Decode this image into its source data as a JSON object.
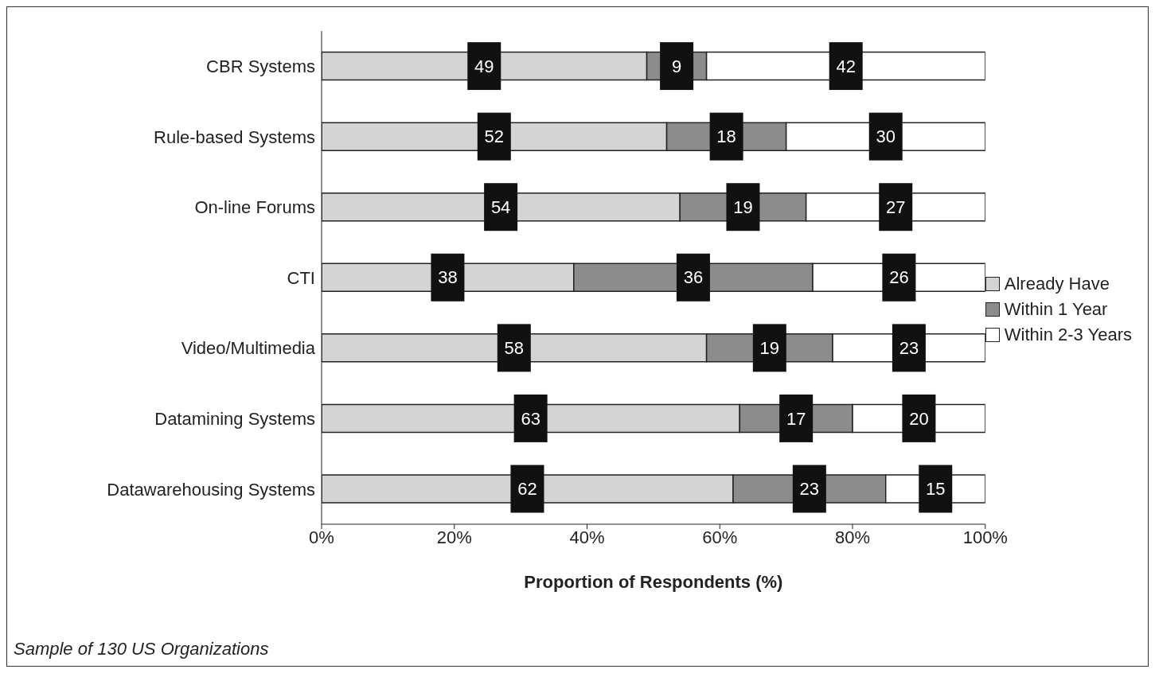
{
  "chart_data": {
    "type": "bar",
    "orientation": "horizontal",
    "stacked": true,
    "xlabel": "Proportion of Respondents (%)",
    "categories": [
      "CBR Systems",
      "Rule-based Systems",
      "On-line Forums",
      "CTI",
      "Video/Multimedia",
      "Datamining Systems",
      "Datawarehousing Systems"
    ],
    "series": [
      {
        "name": "Already Have",
        "color": "#d4d4d4",
        "values": [
          49,
          52,
          54,
          38,
          58,
          63,
          62
        ]
      },
      {
        "name": "Within 1 Year",
        "color": "#8c8c8c",
        "values": [
          9,
          18,
          19,
          36,
          19,
          17,
          23
        ]
      },
      {
        "name": "Within 2-3 Years",
        "color": "#ffffff",
        "values": [
          42,
          30,
          27,
          26,
          23,
          20,
          15
        ]
      }
    ],
    "xlim": [
      0,
      100
    ],
    "xticks": [
      {
        "value": 0,
        "label": "0%"
      },
      {
        "value": 20,
        "label": "20%"
      },
      {
        "value": 40,
        "label": "40%"
      },
      {
        "value": 60,
        "label": "60%"
      },
      {
        "value": 80,
        "label": "80%"
      },
      {
        "value": 100,
        "label": "100%"
      }
    ],
    "data_labels": true,
    "grid": false,
    "legend": "right",
    "annotations": [
      "Sample of 130 US Organizations"
    ]
  }
}
